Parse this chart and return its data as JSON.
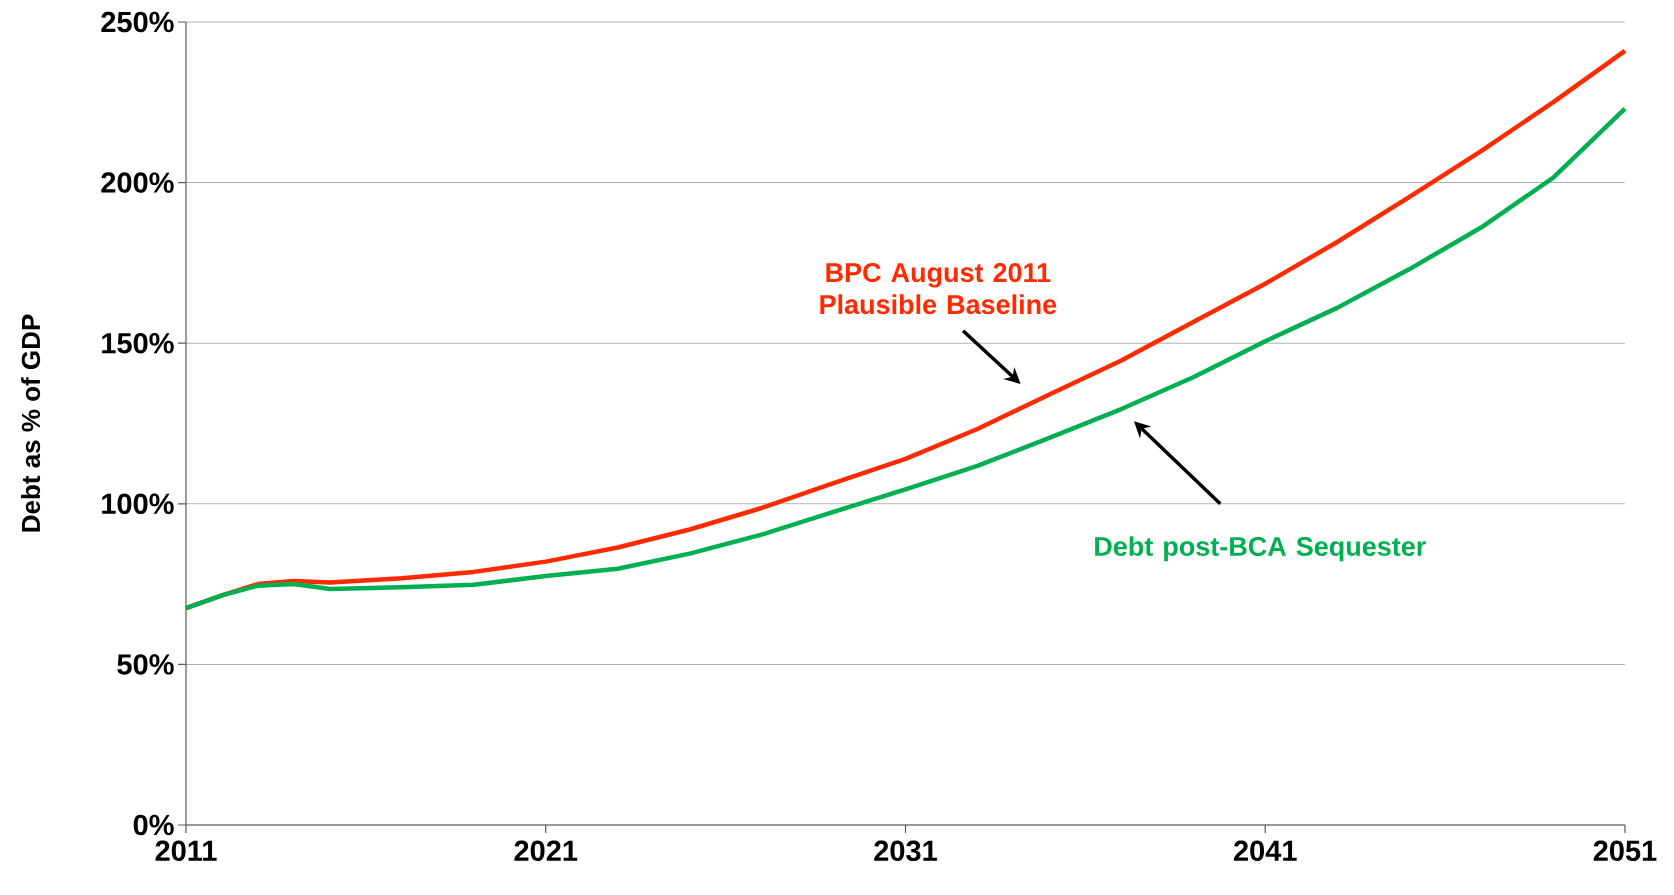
{
  "chart_data": {
    "type": "line",
    "ylabel": "Debt as % of GDP",
    "xlim": [
      2011,
      2051
    ],
    "xticks": [
      2011,
      2021,
      2031,
      2041,
      2051
    ],
    "ylim": [
      0,
      250
    ],
    "yticks": [
      {
        "value": 0,
        "label": "0%"
      },
      {
        "value": 50,
        "label": "50%"
      },
      {
        "value": 100,
        "label": "100%"
      },
      {
        "value": 150,
        "label": "150%"
      },
      {
        "value": 200,
        "label": "200%"
      },
      {
        "value": 250,
        "label": "250%"
      }
    ],
    "grid": "y",
    "series": [
      {
        "name": "BPC August 2011 Plausible Baseline",
        "color": "#ff2a00",
        "x": [
          2011,
          2012,
          2013,
          2014,
          2015,
          2017,
          2019,
          2021,
          2023,
          2025,
          2027,
          2029,
          2031,
          2033,
          2035,
          2037,
          2039,
          2041,
          2043,
          2045,
          2047,
          2049,
          2051
        ],
        "values": [
          67.5,
          71.5,
          75,
          76,
          75.5,
          76.8,
          78.8,
          82,
          86.4,
          92,
          98.7,
          106.4,
          114,
          123.3,
          134,
          144.6,
          156.6,
          168.5,
          181.5,
          195.5,
          209.8,
          225,
          241
        ]
      },
      {
        "name": "Debt post-BCA Sequester",
        "color": "#00b050",
        "x": [
          2011,
          2012,
          2013,
          2014,
          2015,
          2017,
          2019,
          2021,
          2023,
          2025,
          2027,
          2029,
          2031,
          2033,
          2035,
          2037,
          2039,
          2041,
          2043,
          2045,
          2047,
          2049,
          2051
        ],
        "values": [
          67.5,
          71.5,
          74.5,
          75,
          73.5,
          74,
          74.8,
          77.5,
          79.8,
          84.5,
          90.4,
          97.5,
          104.5,
          111.8,
          120.5,
          129.5,
          139.4,
          150.6,
          161,
          173,
          186,
          201.5,
          223
        ]
      }
    ]
  }
}
